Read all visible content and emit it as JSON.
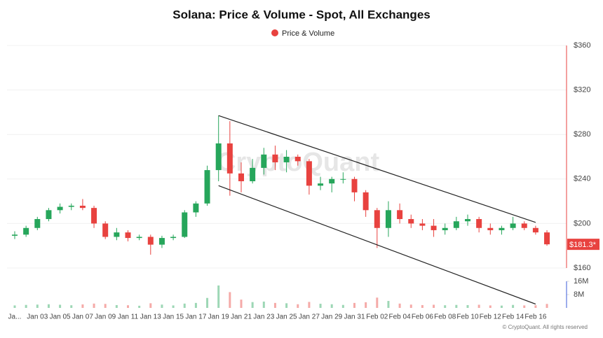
{
  "chart_data": {
    "type": "candlestick",
    "title": "Solana: Price & Volume - Spot, All Exchanges",
    "legend": {
      "name": "Price & Volume",
      "color": "#e8423f"
    },
    "watermark": "CryptoQuant",
    "footer": "© CryptoQuant. All rights reserved",
    "categories": [
      "Ja...",
      null,
      "Jan 03",
      null,
      "Jan 05",
      null,
      "Jan 07",
      null,
      "Jan 09",
      null,
      "Jan 11",
      null,
      "Jan 13",
      null,
      "Jan 15",
      null,
      "Jan 17",
      null,
      "Jan 19",
      null,
      "Jan 21",
      null,
      "Jan 23",
      null,
      "Jan 25",
      null,
      "Jan 27",
      null,
      "Jan 29",
      null,
      "Jan 31",
      null,
      "Feb 02",
      null,
      "Feb 04",
      null,
      "Feb 06",
      null,
      "Feb 08",
      null,
      "Feb 10",
      null,
      "Feb 12",
      null,
      "Feb 14",
      null,
      "Feb 16",
      null
    ],
    "open": [
      189,
      190,
      196,
      204,
      212,
      215,
      216,
      214,
      200,
      188,
      192,
      187,
      188,
      181,
      187,
      188,
      210,
      218,
      248,
      272,
      245,
      238,
      250,
      262,
      255,
      260,
      256,
      234,
      236,
      240,
      240,
      228,
      212,
      196,
      212,
      204,
      200,
      198,
      194,
      196,
      202,
      204,
      196,
      194,
      196,
      200,
      196,
      192
    ],
    "high": [
      193,
      198,
      206,
      214,
      218,
      218,
      222,
      216,
      202,
      196,
      194,
      190,
      190,
      189,
      190,
      212,
      220,
      252,
      297,
      292,
      255,
      258,
      268,
      270,
      266,
      262,
      258,
      242,
      242,
      246,
      242,
      230,
      214,
      220,
      218,
      208,
      204,
      204,
      200,
      206,
      208,
      206,
      200,
      198,
      206,
      202,
      198,
      194
    ],
    "low": [
      186,
      188,
      194,
      202,
      209,
      212,
      212,
      196,
      186,
      185,
      184,
      185,
      172,
      178,
      185,
      187,
      206,
      216,
      238,
      225,
      228,
      236,
      244,
      248,
      246,
      252,
      226,
      230,
      228,
      236,
      220,
      206,
      178,
      188,
      200,
      196,
      194,
      188,
      190,
      194,
      198,
      192,
      190,
      190,
      194,
      194,
      190,
      180
    ],
    "close": [
      190,
      196,
      204,
      212,
      215,
      216,
      214,
      200,
      188,
      192,
      187,
      188,
      181,
      187,
      188,
      210,
      218,
      248,
      272,
      245,
      238,
      250,
      262,
      255,
      260,
      256,
      234,
      236,
      240,
      240,
      228,
      212,
      196,
      212,
      204,
      200,
      198,
      194,
      196,
      202,
      204,
      196,
      194,
      196,
      200,
      196,
      192,
      181.3
    ],
    "volume": [
      1500000,
      1800000,
      2000000,
      2200000,
      1900000,
      1600000,
      2100000,
      2600000,
      2400000,
      1700000,
      1600000,
      1300000,
      2800000,
      2000000,
      1500000,
      2600000,
      3000000,
      6000000,
      13500000,
      9500000,
      5000000,
      3500000,
      3800000,
      3000000,
      2800000,
      2200000,
      3600000,
      2500000,
      2200000,
      1800000,
      3000000,
      3400000,
      6200000,
      4200000,
      2600000,
      2000000,
      1700000,
      1900000,
      1600000,
      1800000,
      1700000,
      1900000,
      1500000,
      1400000,
      1800000,
      1500000,
      1600000,
      2400000
    ],
    "up_color": "#26a65b",
    "down_color": "#e8423f",
    "last_price": {
      "value": 181.3,
      "label": "$181.3*"
    },
    "trendlines": [
      {
        "x": [
          "Jan 19",
          "Feb 16"
        ],
        "y": [
          297,
          201
        ]
      },
      {
        "x": [
          "Jan 19",
          "Feb 16"
        ],
        "y": [
          234,
          127.6
        ]
      }
    ],
    "ylim": [
      160,
      360
    ],
    "yticks": [
      {
        "value": 160,
        "label": "$160"
      },
      {
        "value": 200,
        "label": "$200"
      },
      {
        "value": 240,
        "label": "$240"
      },
      {
        "value": 280,
        "label": "$280"
      },
      {
        "value": 320,
        "label": "$320"
      },
      {
        "value": 360,
        "label": "$360"
      }
    ],
    "y2lim": [
      0,
      16000000
    ],
    "y2ticks": [
      {
        "value": 8000000,
        "label": "8M"
      },
      {
        "value": 16000000,
        "label": "16M"
      }
    ],
    "grid": true
  }
}
